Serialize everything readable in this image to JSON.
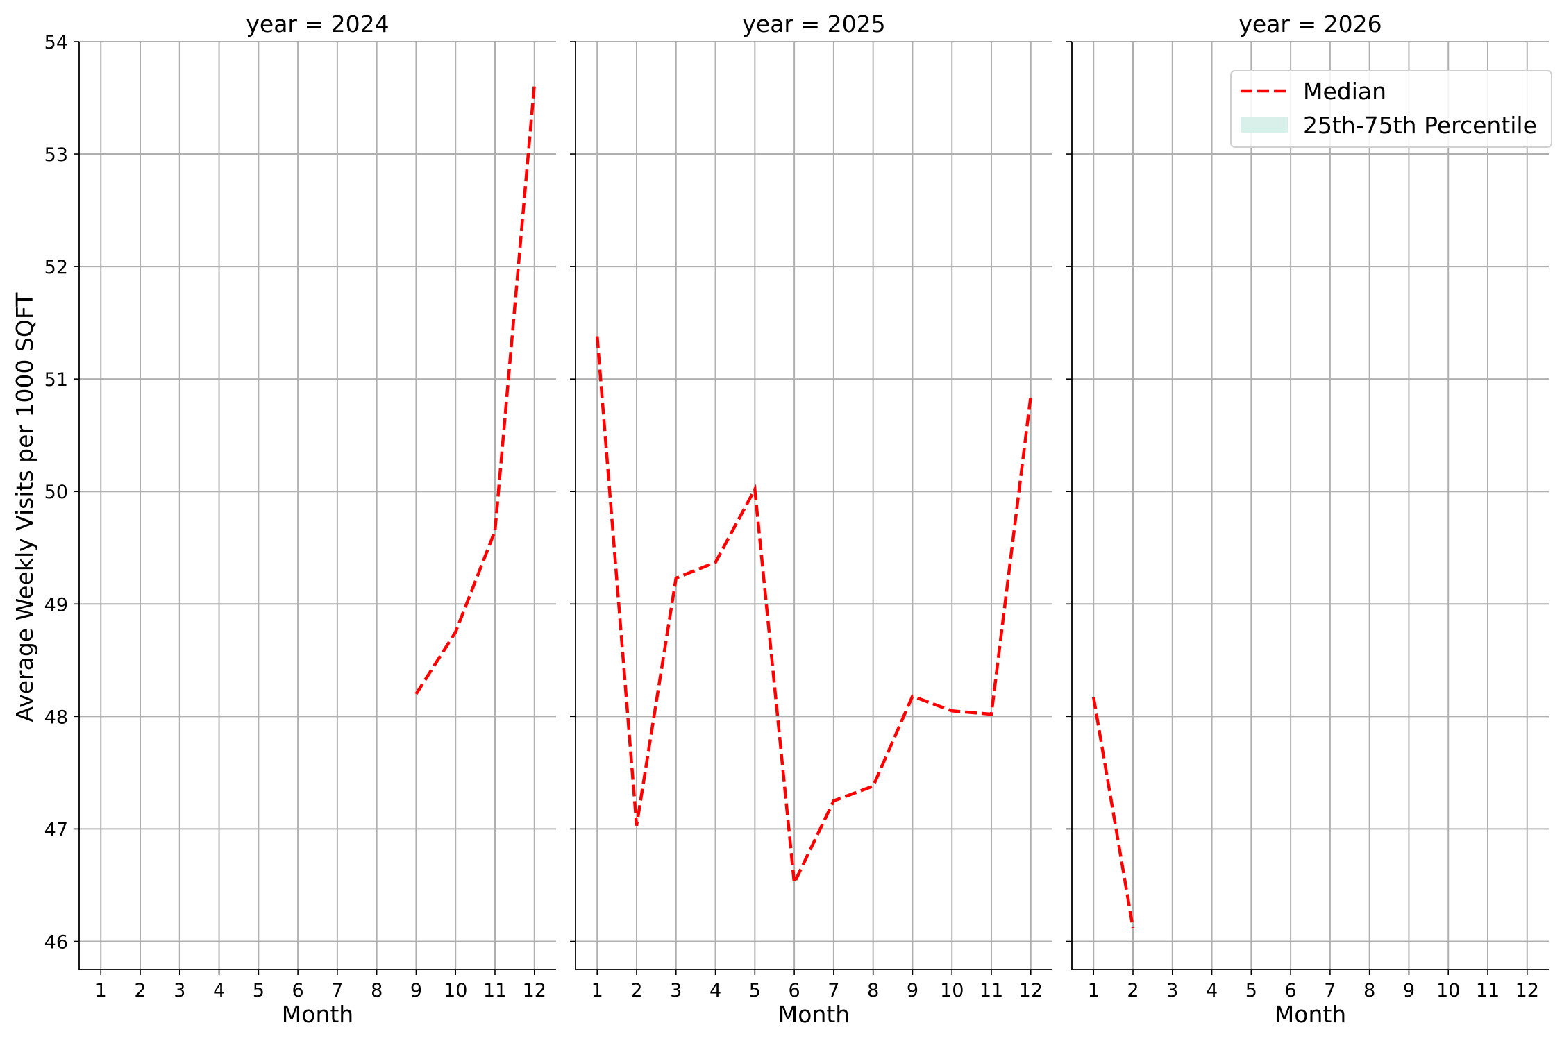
{
  "chart_data": {
    "type": "line",
    "ylabel": "Average Weekly Visits per 1000 SQFT",
    "ylim": [
      45.75,
      54.0
    ],
    "yticks": [
      46,
      47,
      48,
      49,
      50,
      51,
      52,
      53,
      54
    ],
    "xlim": [
      0.45,
      12.55
    ],
    "xticks": [
      1,
      2,
      3,
      4,
      5,
      6,
      7,
      8,
      9,
      10,
      11,
      12
    ],
    "grid": true,
    "legend": {
      "placement": "top-right of last panel",
      "entries": [
        {
          "label": "Median",
          "kind": "line",
          "color": "#ff0000",
          "dash": "dashed"
        },
        {
          "label": "25th-75th Percentile",
          "kind": "patch",
          "color": "#d9efea"
        }
      ]
    },
    "panels": [
      {
        "title": "year = 2024",
        "xlabel": "Month",
        "series": [
          {
            "name": "Median",
            "color": "#ff0000",
            "x": [
              9,
              10,
              11,
              12
            ],
            "y": [
              48.2,
              48.75,
              49.65,
              53.62
            ]
          }
        ]
      },
      {
        "title": "year = 2025",
        "xlabel": "Month",
        "series": [
          {
            "name": "Median",
            "color": "#ff0000",
            "x": [
              1,
              2,
              3,
              4,
              5,
              6,
              7,
              8,
              9,
              10,
              11,
              12
            ],
            "y": [
              51.38,
              47.03,
              49.23,
              49.37,
              50.02,
              46.52,
              47.25,
              47.38,
              48.18,
              48.05,
              48.02,
              50.85
            ]
          }
        ]
      },
      {
        "title": "year = 2026",
        "xlabel": "Month",
        "series": [
          {
            "name": "Median",
            "color": "#ff0000",
            "x": [
              1,
              2
            ],
            "y": [
              48.17,
              46.12
            ]
          }
        ]
      }
    ]
  }
}
